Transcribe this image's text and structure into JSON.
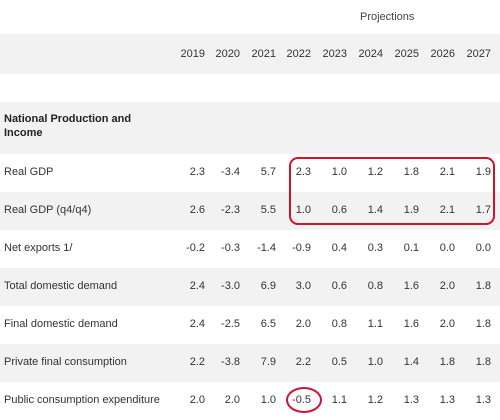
{
  "header": {
    "projections_label": "Projections",
    "years": [
      "2019",
      "2020",
      "2021",
      "2022",
      "2023",
      "2024",
      "2025",
      "2026",
      "2027"
    ]
  },
  "section": {
    "title": "National Production and Income"
  },
  "rows": [
    {
      "label": "Real GDP",
      "values": [
        "2.3",
        "-3.4",
        "5.7",
        "2.3",
        "1.0",
        "1.2",
        "1.8",
        "2.1",
        "1.9"
      ]
    },
    {
      "label": "Real GDP (q4/q4)",
      "values": [
        "2.6",
        "-2.3",
        "5.5",
        "1.0",
        "0.6",
        "1.4",
        "1.9",
        "2.1",
        "1.7"
      ]
    },
    {
      "label": "Net exports 1/",
      "values": [
        "-0.2",
        "-0.3",
        "-1.4",
        "-0.9",
        "0.4",
        "0.3",
        "0.1",
        "0.0",
        "0.0"
      ]
    },
    {
      "label": "Total domestic demand",
      "values": [
        "2.4",
        "-3.0",
        "6.9",
        "3.0",
        "0.6",
        "0.8",
        "1.6",
        "2.0",
        "1.8"
      ]
    },
    {
      "label": "Final domestic demand",
      "values": [
        "2.4",
        "-2.5",
        "6.5",
        "2.0",
        "0.8",
        "1.1",
        "1.6",
        "2.0",
        "1.8"
      ]
    },
    {
      "label": "Private final consumption",
      "values": [
        "2.2",
        "-3.8",
        "7.9",
        "2.2",
        "0.5",
        "1.0",
        "1.4",
        "1.8",
        "1.8"
      ]
    },
    {
      "label": "Public consumption expenditure",
      "values": [
        "2.0",
        "2.0",
        "1.0",
        "-0.5",
        "1.1",
        "1.2",
        "1.3",
        "1.3",
        "1.3"
      ]
    }
  ],
  "annotation_color": "#d0122d"
}
